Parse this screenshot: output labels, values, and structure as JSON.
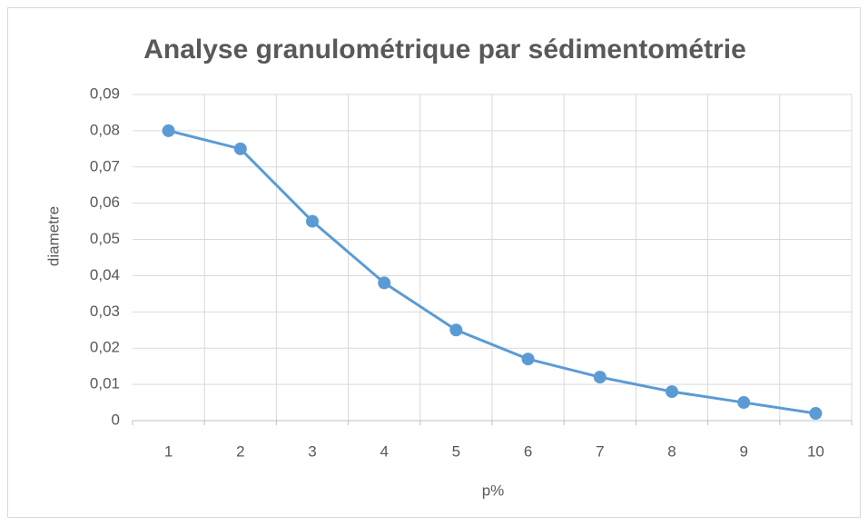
{
  "chart_data": {
    "type": "line",
    "title": "Analyse granulométrique par sédimentométrie",
    "x_label": "p%",
    "y_label": "diametre",
    "categories": [
      "1",
      "2",
      "3",
      "4",
      "5",
      "6",
      "7",
      "8",
      "9",
      "10"
    ],
    "series": [
      {
        "name": "diametre",
        "color": "#5b9bd5",
        "values": [
          0.08,
          0.075,
          0.055,
          0.038,
          0.025,
          0.017,
          0.012,
          0.008,
          0.005,
          0.002
        ]
      }
    ],
    "ylim": [
      0,
      0.09
    ],
    "yticks": [
      0,
      {
        "value": 0.01,
        "label": "0,01"
      },
      {
        "value": 0.02,
        "label": "0,02"
      },
      {
        "value": 0.03,
        "label": "0,03"
      },
      {
        "value": 0.04,
        "label": "0,04"
      },
      {
        "value": 0.05,
        "label": "0,05"
      },
      {
        "value": 0.06,
        "label": "0,06"
      },
      {
        "value": 0.07,
        "label": "0,07"
      },
      {
        "value": 0.08,
        "label": "0,08"
      },
      {
        "value": 0.09,
        "label": "0,09"
      }
    ],
    "grid": true,
    "legend": false
  }
}
